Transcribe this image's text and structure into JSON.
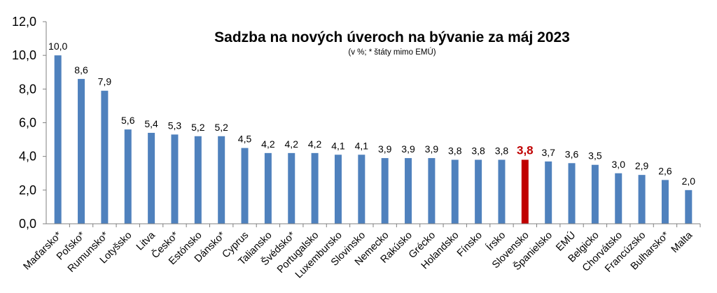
{
  "chart_data": {
    "type": "bar",
    "title": "Sadzba na nových úveroch na bývanie za máj 2023",
    "subtitle": "(v %; * štáty mimo EMÚ)",
    "xlabel": "",
    "ylabel": "",
    "ylim": [
      0,
      12
    ],
    "y_ticks": [
      "0,0",
      "2,0",
      "4,0",
      "6,0",
      "8,0",
      "10,0",
      "12,0"
    ],
    "grid": false,
    "legend": "none",
    "categories": [
      "Maďarsko*",
      "Poľsko*",
      "Rumunsko*",
      "Lotyšsko",
      "Litva",
      "Česko*",
      "Estónsko",
      "Dánsko*",
      "Cyprus",
      "Taliansko",
      "Švédsko*",
      "Portugalsko",
      "Luxembursko",
      "Slovinsko",
      "Nemecko",
      "Rakúsko",
      "Grécko",
      "Holandsko",
      "Fínsko",
      "Írsko",
      "Slovensko",
      "Španielsko",
      "EMÚ",
      "Belgicko",
      "Chorvátsko",
      "Francúzsko",
      "Bulharsko*",
      "Malta"
    ],
    "values": [
      10.0,
      8.6,
      7.9,
      5.6,
      5.4,
      5.3,
      5.2,
      5.2,
      4.5,
      4.2,
      4.2,
      4.2,
      4.1,
      4.1,
      3.9,
      3.9,
      3.9,
      3.8,
      3.8,
      3.8,
      3.8,
      3.7,
      3.6,
      3.5,
      3.0,
      2.9,
      2.6,
      2.0
    ],
    "value_labels": [
      "10,0",
      "8,6",
      "7,9",
      "5,6",
      "5,4",
      "5,3",
      "5,2",
      "5,2",
      "4,5",
      "4,2",
      "4,2",
      "4,2",
      "4,1",
      "4,1",
      "3,9",
      "3,9",
      "3,9",
      "3,8",
      "3,8",
      "3,8",
      "3,8",
      "3,7",
      "3,6",
      "3,5",
      "3,0",
      "2,9",
      "2,6",
      "2,0"
    ],
    "highlight_category": "Slovensko",
    "colors": {
      "bar": "#4f81bd",
      "highlight": "#c00000",
      "axis": "#808080"
    }
  }
}
